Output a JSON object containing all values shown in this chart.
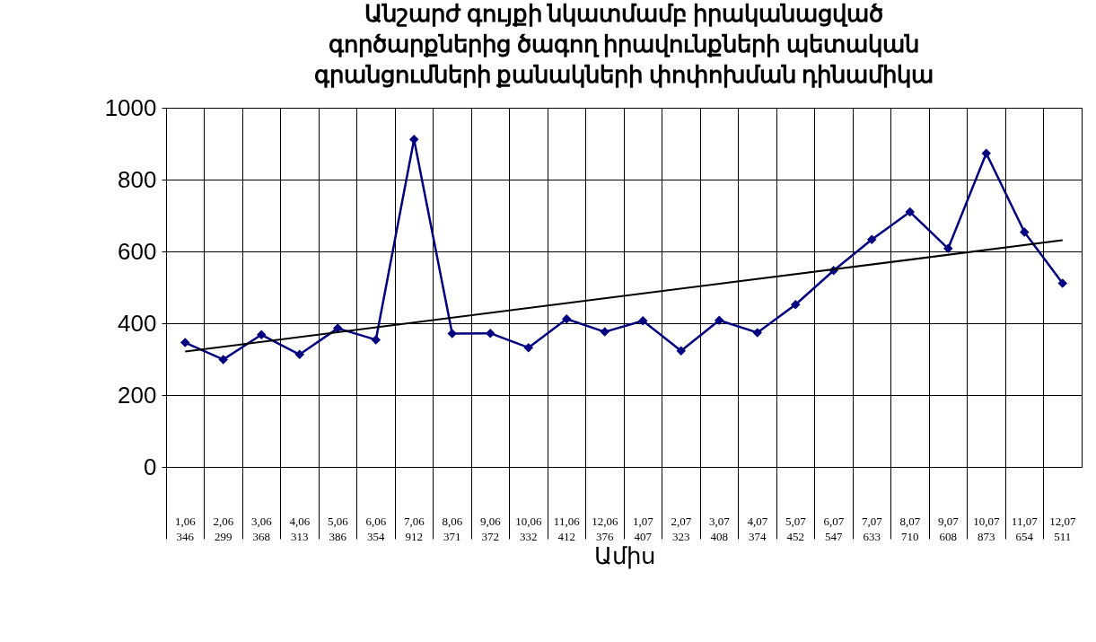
{
  "chart_data": {
    "type": "line",
    "title": "Անշարժ գույքի նկատմամբ իրականացված\nգործարքներից ծագող իրավունքների պետական\nգրանցումների քանակների փոփոխման դինամիկա",
    "xlabel": "Ամիս",
    "categories": [
      "1,06",
      "2,06",
      "3,06",
      "4,06",
      "5,06",
      "6,06",
      "7,06",
      "8,06",
      "9,06",
      "10,06",
      "11,06",
      "12,06",
      "1,07",
      "2,07",
      "3,07",
      "4,07",
      "5,07",
      "6,07",
      "7,07",
      "8,07",
      "9,07",
      "10,07",
      "11,07",
      "12,07"
    ],
    "series": [
      {
        "color": "#000080",
        "values": [
          346,
          299,
          368,
          313,
          386,
          354,
          912,
          371,
          372,
          332,
          412,
          376,
          407,
          323,
          408,
          374,
          452,
          547,
          633,
          710,
          608,
          873,
          654,
          511
        ],
        "value_labels": [
          "346",
          "299",
          "368",
          "313",
          "386",
          "354",
          "912",
          "371",
          "372",
          "332",
          "412",
          "376",
          "407",
          "323",
          "408",
          "374",
          "452",
          "547",
          "633",
          "710",
          "608",
          "873",
          "654",
          "511"
        ]
      },
      {
        "type": "line",
        "color": "#000000",
        "marker": "none",
        "x": [
          "1,06",
          "12,07"
        ],
        "values": [
          321,
          631
        ]
      }
    ],
    "ylim": [
      0,
      1000
    ],
    "yticks": [
      0,
      200,
      400,
      600,
      800,
      1000
    ],
    "grid": true,
    "marker": "diamond",
    "line_style": "solid"
  }
}
